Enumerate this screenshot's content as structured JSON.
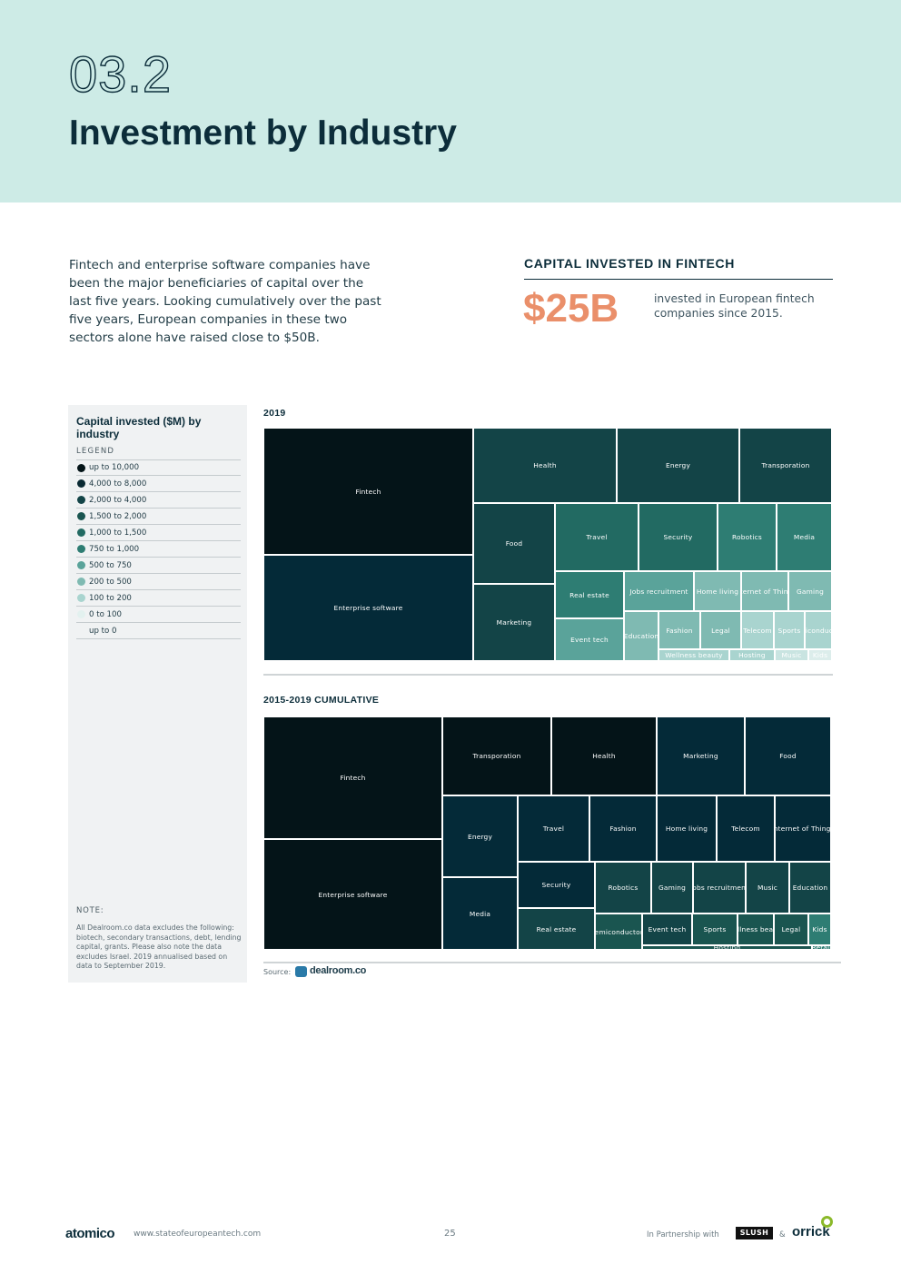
{
  "header": {
    "section_number": "03.2",
    "title": "Investment by Industry"
  },
  "intro_text": "Fintech and enterprise software companies have been the major beneficiaries of capital over the last five years. Looking cumulatively over the past five years, European companies in these two sectors alone have raised close to $50B.",
  "kpi": {
    "title": "CAPITAL INVESTED IN FINTECH",
    "value": "$25B",
    "description": "invested in European fintech companies since 2015.",
    "value_color": "#ea8f6a"
  },
  "panel": {
    "title": "Capital invested ($M) by industry",
    "legend_head": "LEGEND",
    "legend": [
      {
        "label": "up to 10,000",
        "color": "#041418"
      },
      {
        "label": "4,000 to 8,000",
        "color": "#0a2a33"
      },
      {
        "label": "2,000 to 4,000",
        "color": "#134447"
      },
      {
        "label": "1,500 to 2,000",
        "color": "#1a5550"
      },
      {
        "label": "1,000 to 1,500",
        "color": "#226a62"
      },
      {
        "label": "750 to 1,000",
        "color": "#2e7d73"
      },
      {
        "label": "500 to 750",
        "color": "#5aa39a"
      },
      {
        "label": "200 to 500",
        "color": "#7fbab2"
      },
      {
        "label": "100 to 200",
        "color": "#a9d4cf"
      },
      {
        "label": "0 to 100",
        "color": "#e3f1ef"
      },
      {
        "label": "up to 0",
        "color": "#f0f2f3"
      }
    ],
    "note_head": "NOTE:",
    "note_text": "All Dealroom.co data excludes the following: biotech, secondary transactions, debt, lending capital, grants. Please also note the data excludes Israel. 2019 annualised based on data to September 2019."
  },
  "chart_data": [
    {
      "type": "treemap",
      "title": "2019",
      "cells": [
        {
          "label": "Fintech",
          "color": "#041418"
        },
        {
          "label": "Enterprise software",
          "color": "#042a38"
        },
        {
          "label": "Health",
          "color": "#134447"
        },
        {
          "label": "Energy",
          "color": "#134447"
        },
        {
          "label": "Transporation",
          "color": "#134447"
        },
        {
          "label": "Food",
          "color": "#134447"
        },
        {
          "label": "Marketing",
          "color": "#134447"
        },
        {
          "label": "Travel",
          "color": "#226a62"
        },
        {
          "label": "Security",
          "color": "#226a62"
        },
        {
          "label": "Robotics",
          "color": "#2e7d73"
        },
        {
          "label": "Media",
          "color": "#2e7d73"
        },
        {
          "label": "Real estate",
          "color": "#2e7d73"
        },
        {
          "label": "Jobs recruitment",
          "color": "#5aa39a"
        },
        {
          "label": "Home living",
          "color": "#7fbab2"
        },
        {
          "label": "Internet of Things",
          "color": "#7fbab2"
        },
        {
          "label": "Gaming",
          "color": "#7fbab2"
        },
        {
          "label": "Event tech",
          "color": "#5aa39a"
        },
        {
          "label": "Education",
          "color": "#7fbab2"
        },
        {
          "label": "Fashion",
          "color": "#7fbab2"
        },
        {
          "label": "Legal",
          "color": "#7fbab2"
        },
        {
          "label": "Telecom",
          "color": "#a9d4cf"
        },
        {
          "label": "Sports",
          "color": "#a9d4cf"
        },
        {
          "label": "Semiconductors",
          "color": "#a9d4cf"
        },
        {
          "label": "Wellness beauty",
          "color": "#a9d4cf"
        },
        {
          "label": "Hosting",
          "color": "#a9d4cf"
        },
        {
          "label": "Music",
          "color": "#c9e4e1"
        },
        {
          "label": "Kids",
          "color": "#dcedeb"
        }
      ]
    },
    {
      "type": "treemap",
      "title": "2015-2019 CUMULATIVE",
      "cells": [
        {
          "label": "Fintech",
          "color": "#041418"
        },
        {
          "label": "Enterprise software",
          "color": "#041418"
        },
        {
          "label": "Transporation",
          "color": "#041418"
        },
        {
          "label": "Health",
          "color": "#041418"
        },
        {
          "label": "Marketing",
          "color": "#042a38"
        },
        {
          "label": "Food",
          "color": "#042a38"
        },
        {
          "label": "Energy",
          "color": "#042a38"
        },
        {
          "label": "Media",
          "color": "#042a38"
        },
        {
          "label": "Travel",
          "color": "#042a38"
        },
        {
          "label": "Fashion",
          "color": "#042a38"
        },
        {
          "label": "Home living",
          "color": "#042a38"
        },
        {
          "label": "Telecom",
          "color": "#042a38"
        },
        {
          "label": "Internet of Things",
          "color": "#042a38"
        },
        {
          "label": "Security",
          "color": "#042a38"
        },
        {
          "label": "Real estate",
          "color": "#134447"
        },
        {
          "label": "Robotics",
          "color": "#134447"
        },
        {
          "label": "Gaming",
          "color": "#134447"
        },
        {
          "label": "Jobs recruitment",
          "color": "#134447"
        },
        {
          "label": "Music",
          "color": "#134447"
        },
        {
          "label": "Education",
          "color": "#134447"
        },
        {
          "label": "Semiconductors",
          "color": "#1a5550"
        },
        {
          "label": "Event tech",
          "color": "#134447"
        },
        {
          "label": "Sports",
          "color": "#1a5550"
        },
        {
          "label": "Wellness beauty",
          "color": "#1a5550"
        },
        {
          "label": "Legal",
          "color": "#1a5550"
        },
        {
          "label": "Kids",
          "color": "#2e7d73"
        },
        {
          "label": "Hosting",
          "color": "#1a5550"
        },
        {
          "label": "Retail",
          "color": "#2e7d73"
        }
      ]
    }
  ],
  "source": {
    "label": "Source:",
    "logo_text": "dealroom.co"
  },
  "footer": {
    "brand": "atomico",
    "url": "www.stateofeuropeantech.com",
    "page": "25",
    "partner_text": "In Partnership with",
    "partner_1": "SLUSH",
    "amp": "&",
    "partner_2": "orrick"
  }
}
